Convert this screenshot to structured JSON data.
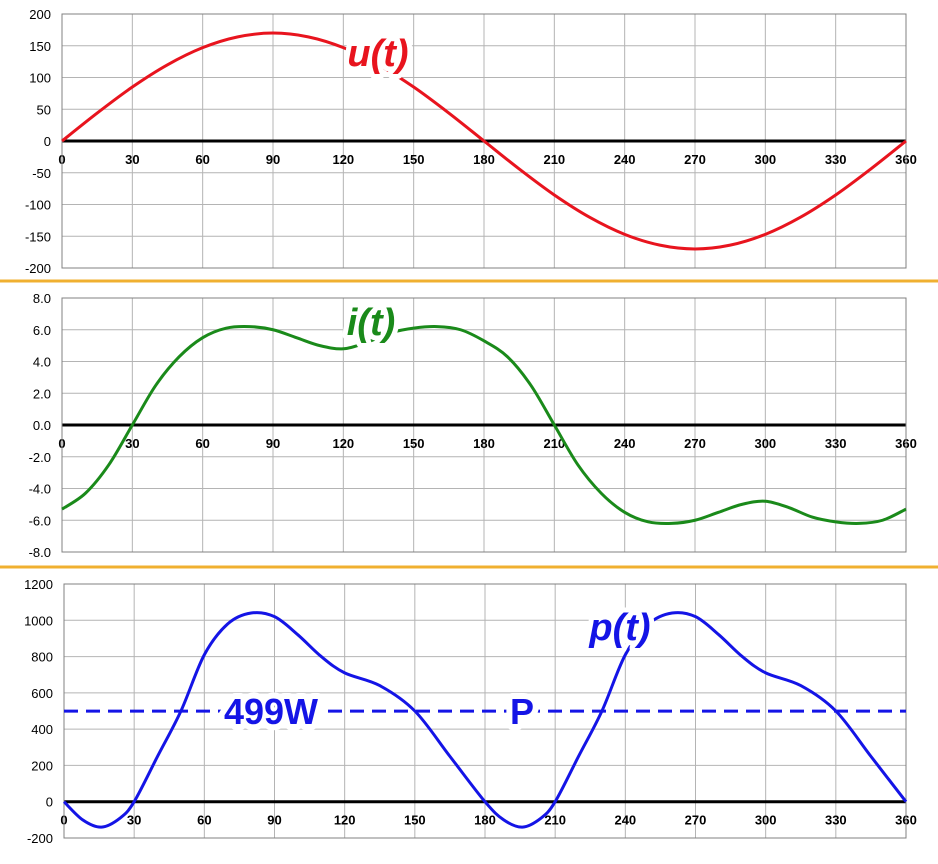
{
  "chart_data": [
    {
      "type": "line",
      "label": "u(t)",
      "color": "#e8141e",
      "xticks": [
        "0",
        "30",
        "60",
        "90",
        "120",
        "150",
        "180",
        "210",
        "240",
        "270",
        "300",
        "330",
        "360"
      ],
      "yticks": [
        "200",
        "150",
        "100",
        "50",
        "0",
        "-50",
        "-100",
        "-150",
        "-200"
      ],
      "xlim": [
        0,
        360
      ],
      "ylim": [
        -200,
        200
      ],
      "grid": true,
      "series": [
        {
          "x": [
            0,
            15,
            30,
            45,
            60,
            75,
            90,
            105,
            120,
            135,
            150,
            165,
            180,
            195,
            210,
            225,
            240,
            255,
            270,
            285,
            300,
            315,
            330,
            345,
            360
          ],
          "y": [
            0,
            44,
            85,
            120,
            147,
            164,
            170,
            164,
            147,
            120,
            85,
            44,
            0,
            -44,
            -85,
            -120,
            -147,
            -164,
            -170,
            -164,
            -147,
            -120,
            -85,
            -44,
            0
          ]
        }
      ]
    },
    {
      "type": "line",
      "label": "i(t)",
      "color": "#1a8a1a",
      "xticks": [
        "0",
        "30",
        "60",
        "90",
        "120",
        "150",
        "180",
        "210",
        "240",
        "270",
        "300",
        "330",
        "360"
      ],
      "yticks": [
        "8.0",
        "6.0",
        "4.0",
        "2.0",
        "0.0",
        "-2.0",
        "-4.0",
        "-6.0",
        "-8.0"
      ],
      "xlim": [
        0,
        360
      ],
      "ylim": [
        -8,
        8
      ],
      "grid": true,
      "series": [
        {
          "x": [
            0,
            10,
            20,
            30,
            40,
            50,
            60,
            70,
            80,
            90,
            100,
            110,
            120,
            130,
            140,
            150,
            160,
            170,
            180,
            190,
            200,
            210,
            220,
            230,
            240,
            250,
            260,
            270,
            280,
            290,
            300,
            310,
            320,
            330,
            340,
            350,
            360
          ],
          "y": [
            -5.3,
            -4.3,
            -2.5,
            0,
            2.5,
            4.3,
            5.5,
            6.1,
            6.2,
            6.0,
            5.5,
            5.0,
            4.8,
            5.2,
            5.8,
            6.1,
            6.2,
            6.0,
            5.3,
            4.3,
            2.5,
            0,
            -2.5,
            -4.3,
            -5.5,
            -6.1,
            -6.2,
            -6.0,
            -5.5,
            -5.0,
            -4.8,
            -5.2,
            -5.8,
            -6.1,
            -6.2,
            -6.0,
            -5.3
          ]
        }
      ]
    },
    {
      "type": "line",
      "label": "p(t)",
      "color": "#1414e6",
      "xticks": [
        "0",
        "30",
        "60",
        "90",
        "120",
        "150",
        "180",
        "210",
        "240",
        "270",
        "300",
        "330",
        "360"
      ],
      "yticks": [
        "1200",
        "1000",
        "800",
        "600",
        "400",
        "200",
        "0",
        "-200"
      ],
      "xlim": [
        0,
        360
      ],
      "ylim": [
        -200,
        1200
      ],
      "grid": true,
      "average": {
        "value": 499,
        "text": "499W",
        "symbol": "P"
      },
      "series": [
        {
          "x": [
            0,
            8,
            16,
            24,
            30,
            40,
            50,
            60,
            70,
            80,
            90,
            100,
            110,
            120,
            135,
            150,
            165,
            180,
            188,
            196,
            204,
            210,
            220,
            230,
            240,
            250,
            260,
            270,
            280,
            290,
            300,
            315,
            330,
            345,
            360
          ],
          "y": [
            0,
            -100,
            -140,
            -90,
            0,
            250,
            500,
            810,
            980,
            1040,
            1020,
            920,
            800,
            710,
            640,
            500,
            250,
            0,
            -100,
            -140,
            -90,
            0,
            250,
            500,
            810,
            980,
            1040,
            1020,
            920,
            800,
            710,
            640,
            500,
            250,
            0
          ]
        }
      ]
    }
  ]
}
